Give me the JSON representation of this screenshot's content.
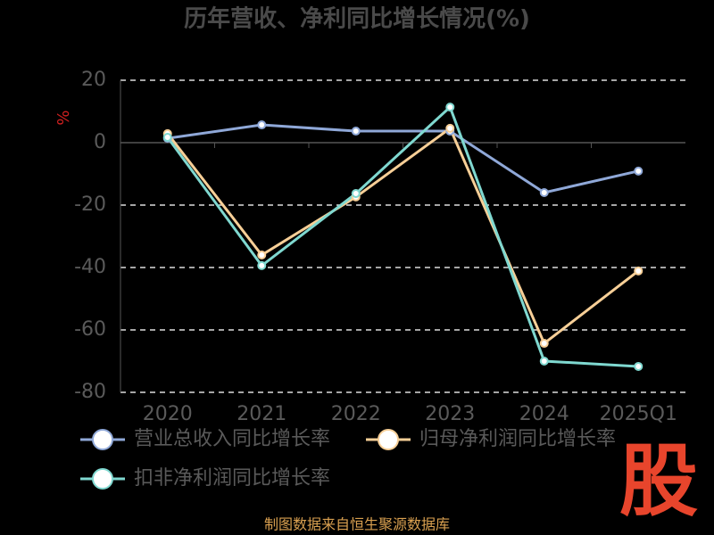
{
  "chart_data": {
    "type": "line",
    "title": "历年营收、净利同比增长情况(%)",
    "y_label": "%",
    "categories": [
      "2020",
      "2021",
      "2022",
      "2023",
      "2024",
      "2025Q1"
    ],
    "series": [
      {
        "name": "营业总收入同比增长率",
        "color": "#8fa8d8",
        "values": [
          1.4,
          5.7,
          3.7,
          3.7,
          -16,
          -9.1
        ]
      },
      {
        "name": "归母净利润同比增长率",
        "color": "#f7cf97",
        "values": [
          2.9,
          -36,
          -17.4,
          4.6,
          -64.3,
          -41.1
        ]
      },
      {
        "name": "扣非净利润同比增长率",
        "color": "#7fd8d0",
        "values": [
          1.7,
          -39.4,
          -16.3,
          11.4,
          -70,
          -71.7
        ]
      }
    ],
    "ylim": [
      -80,
      20
    ],
    "yticks": [
      -80,
      -60,
      -40,
      -20,
      0,
      20
    ],
    "grid": true
  },
  "footer": "制图数据来自恒生聚源数据库",
  "logo": "股"
}
